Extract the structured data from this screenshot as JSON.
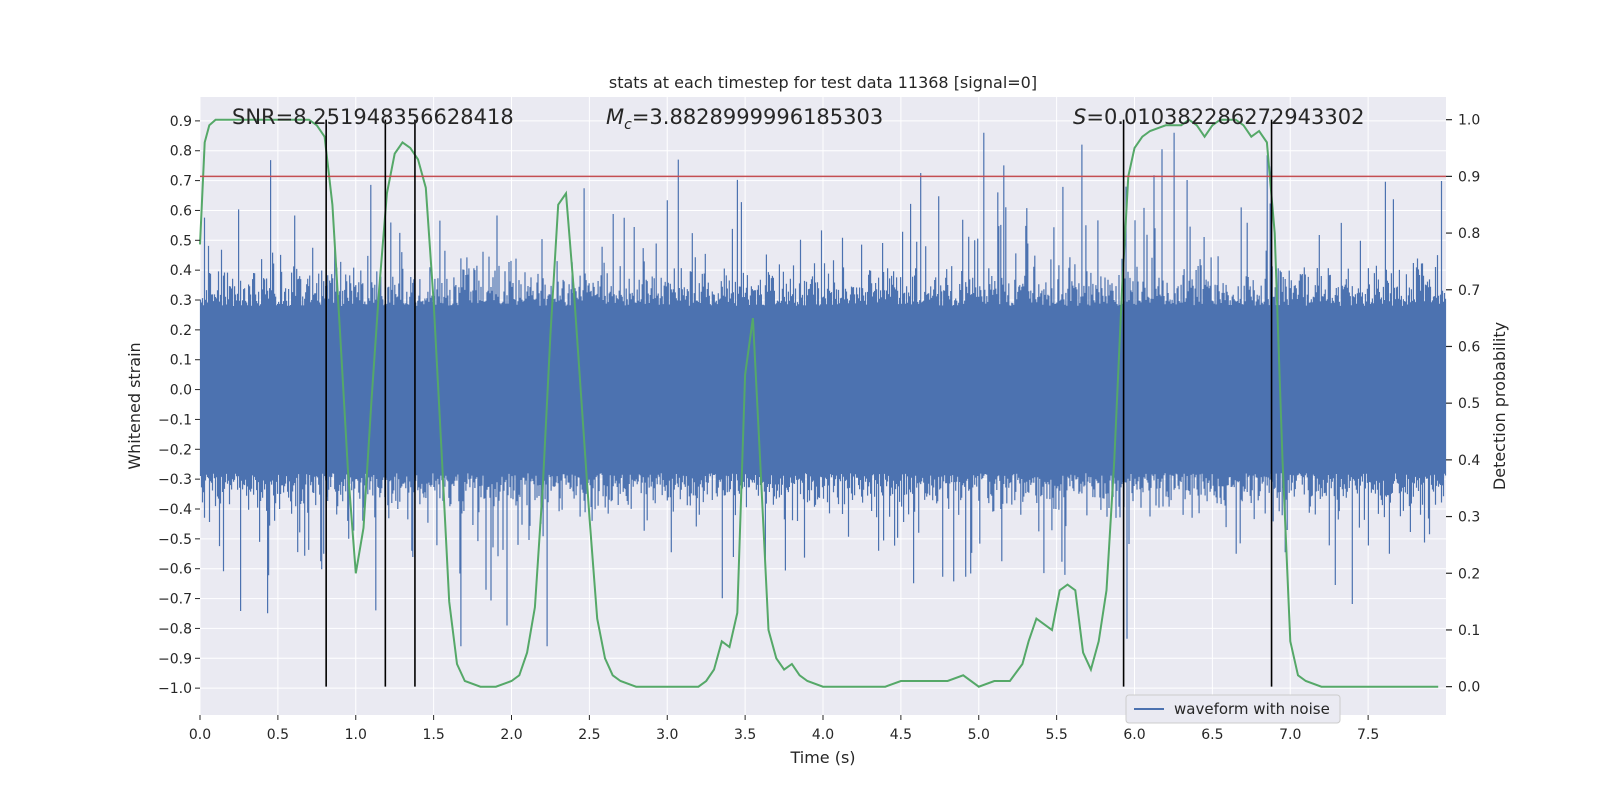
{
  "chart_data": {
    "type": "line",
    "title": "stats at each timestep for test data 11368 [signal=0]",
    "xlabel": "Time (s)",
    "ylabel_left": "Whitened strain",
    "ylabel_right": "Detection probability",
    "xlim": [
      0.0,
      8.0
    ],
    "ylim_left": [
      -1.09,
      0.98
    ],
    "ylim_right": [
      -0.05,
      1.04
    ],
    "x_ticks": [
      0.0,
      0.5,
      1.0,
      1.5,
      2.0,
      2.5,
      3.0,
      3.5,
      4.0,
      4.5,
      5.0,
      5.5,
      6.0,
      6.5,
      7.0,
      7.5
    ],
    "x_tick_labels": [
      "0.0",
      "0.5",
      "1.0",
      "1.5",
      "2.0",
      "2.5",
      "3.0",
      "3.5",
      "4.0",
      "4.5",
      "5.0",
      "5.5",
      "6.0",
      "6.5",
      "7.0",
      "7.5"
    ],
    "y_left_ticks": [
      0.9,
      0.8,
      0.7,
      0.6,
      0.5,
      0.4,
      0.3,
      0.2,
      0.1,
      0.0,
      -0.1,
      -0.2,
      -0.3,
      -0.4,
      -0.5,
      -0.6,
      -0.7,
      -0.8,
      -0.9,
      -1.0
    ],
    "y_left_tick_labels": [
      "0.9",
      "0.8",
      "0.7",
      "0.6",
      "0.5",
      "0.4",
      "0.3",
      "0.2",
      "0.1",
      "0.0",
      "−0.1",
      "−0.2",
      "−0.3",
      "−0.4",
      "−0.5",
      "−0.6",
      "−0.7",
      "−0.8",
      "−0.9",
      "−1.0"
    ],
    "y_right_ticks": [
      1.0,
      0.9,
      0.8,
      0.7,
      0.6,
      0.5,
      0.4,
      0.3,
      0.2,
      0.1,
      0.0
    ],
    "y_right_tick_labels": [
      "1.0",
      "0.9",
      "0.8",
      "0.7",
      "0.6",
      "0.5",
      "0.4",
      "0.3",
      "0.2",
      "0.1",
      "0.0"
    ],
    "threshold": 0.9,
    "vlines": [
      0.81,
      1.19,
      1.38,
      5.93,
      6.88
    ],
    "annotations": {
      "snr": "SNR=8.251948356628418",
      "mc_symbol": "M",
      "mc_sub": "c",
      "mc_value": "=3.8828999996185303",
      "s_symbol": "S",
      "s_value": "=0.010382286272943302"
    },
    "series": [
      {
        "name": "waveform with noise",
        "color": "#4c72b0",
        "description": "dense whitened strain noise, core amplitude ~±0.3 with spikes up to ~±0.9"
      },
      {
        "name": "detection probability",
        "color": "#55a868",
        "x": [
          0.0,
          0.03,
          0.06,
          0.1,
          0.15,
          0.2,
          0.3,
          0.4,
          0.5,
          0.6,
          0.7,
          0.75,
          0.8,
          0.85,
          0.9,
          0.95,
          1.0,
          1.05,
          1.1,
          1.15,
          1.2,
          1.25,
          1.3,
          1.35,
          1.4,
          1.45,
          1.5,
          1.55,
          1.6,
          1.65,
          1.7,
          1.8,
          1.9,
          2.0,
          2.05,
          2.1,
          2.15,
          2.2,
          2.25,
          2.3,
          2.35,
          2.4,
          2.45,
          2.5,
          2.55,
          2.6,
          2.65,
          2.7,
          2.8,
          3.0,
          3.2,
          3.25,
          3.3,
          3.35,
          3.4,
          3.45,
          3.5,
          3.55,
          3.6,
          3.65,
          3.7,
          3.75,
          3.8,
          3.85,
          3.9,
          4.0,
          4.1,
          4.2,
          4.3,
          4.4,
          4.5,
          4.55,
          4.6,
          4.7,
          4.8,
          4.9,
          5.0,
          5.1,
          5.2,
          5.28,
          5.32,
          5.37,
          5.42,
          5.47,
          5.52,
          5.57,
          5.62,
          5.67,
          5.72,
          5.77,
          5.82,
          5.87,
          5.92,
          5.96,
          6.0,
          6.05,
          6.1,
          6.2,
          6.3,
          6.35,
          6.4,
          6.45,
          6.5,
          6.55,
          6.6,
          6.65,
          6.7,
          6.75,
          6.8,
          6.85,
          6.9,
          6.95,
          7.0,
          7.05,
          7.1,
          7.2,
          7.4,
          7.6,
          7.8,
          7.95
        ],
        "y": [
          0.78,
          0.96,
          0.99,
          1.0,
          1.0,
          1.0,
          1.0,
          1.0,
          1.0,
          1.0,
          1.0,
          0.99,
          0.97,
          0.85,
          0.62,
          0.38,
          0.2,
          0.28,
          0.5,
          0.7,
          0.87,
          0.94,
          0.96,
          0.95,
          0.93,
          0.88,
          0.68,
          0.42,
          0.15,
          0.04,
          0.01,
          0.0,
          0.0,
          0.01,
          0.02,
          0.06,
          0.14,
          0.35,
          0.62,
          0.85,
          0.87,
          0.7,
          0.5,
          0.3,
          0.12,
          0.05,
          0.02,
          0.01,
          0.0,
          0.0,
          0.0,
          0.01,
          0.03,
          0.08,
          0.07,
          0.13,
          0.55,
          0.65,
          0.38,
          0.1,
          0.05,
          0.03,
          0.04,
          0.02,
          0.01,
          0.0,
          0.0,
          0.0,
          0.0,
          0.0,
          0.01,
          0.01,
          0.01,
          0.01,
          0.01,
          0.02,
          0.0,
          0.01,
          0.01,
          0.04,
          0.08,
          0.12,
          0.11,
          0.1,
          0.17,
          0.18,
          0.17,
          0.06,
          0.03,
          0.08,
          0.17,
          0.4,
          0.7,
          0.9,
          0.95,
          0.97,
          0.98,
          0.99,
          0.99,
          1.0,
          0.99,
          0.97,
          0.99,
          1.0,
          1.0,
          1.0,
          0.99,
          0.97,
          0.98,
          0.96,
          0.8,
          0.4,
          0.08,
          0.02,
          0.01,
          0.0,
          0.0,
          0.0,
          0.0,
          0.0
        ]
      }
    ],
    "legend": {
      "placement": "bottom-right",
      "entries": [
        "waveform with noise"
      ]
    }
  },
  "colors": {
    "plot_background": "#eaeaf2",
    "grid": "#ffffff",
    "waveform": "#4c72b0",
    "probability": "#55a868",
    "threshold": "#c44e52",
    "vline": "#000000"
  }
}
